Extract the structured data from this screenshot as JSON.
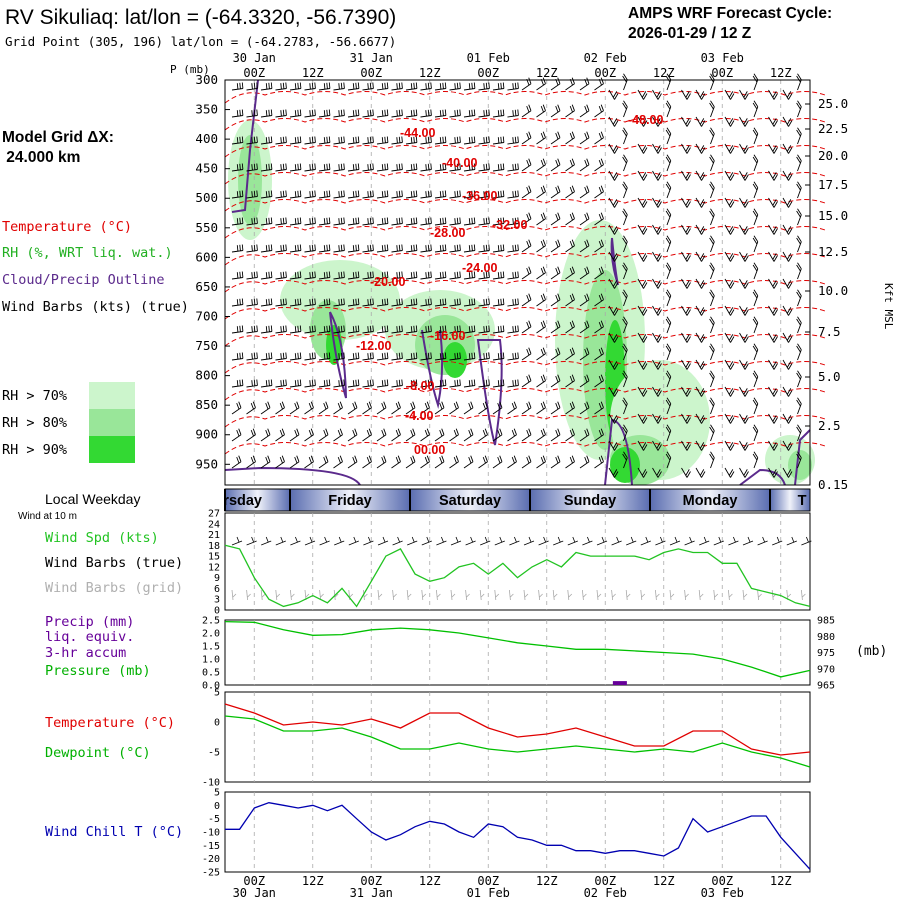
{
  "header": {
    "title": "RV Sikuliaq:  lat/lon = (-64.3320, -56.7390)",
    "subtitle": "Grid Point (305, 196) lat/lon = (-64.2783, -56.6677)",
    "cycle_label": "AMPS WRF Forecast Cycle:",
    "cycle_value": "2026-01-29 / 12  Z"
  },
  "time_axis": {
    "ticks": [
      "00Z",
      "12Z",
      "00Z",
      "12Z",
      "00Z",
      "12Z",
      "00Z",
      "12Z",
      "00Z",
      "12Z"
    ],
    "dates": [
      "30 Jan",
      "31 Jan",
      "01 Feb",
      "02 Feb",
      "03 Feb"
    ]
  },
  "sidebar": {
    "grid_label": "Model Grid ΔX:",
    "grid_value": " 24.000 km",
    "legend_temperature": "Temperature (°C)",
    "legend_rh": "RH (%, WRT liq. wat.)",
    "legend_cloud": "Cloud/Precip Outline",
    "legend_barbs": "Wind Barbs (kts) (true)",
    "rh_levels": [
      "RH > 70%",
      "RH > 80%",
      "RH > 90%"
    ],
    "rh_colors": [
      "#ccf5cc",
      "#99e699",
      "#33d933"
    ]
  },
  "sounding": {
    "pressure_label": "P (mb)",
    "pressure_ticks": [
      "300",
      "350",
      "400",
      "450",
      "500",
      "550",
      "600",
      "650",
      "700",
      "750",
      "800",
      "850",
      "900",
      "950"
    ],
    "height_label": "Kft MSL",
    "height_ticks": [
      "25.0",
      "22.5",
      "20.0",
      "17.5",
      "15.0",
      "12.5",
      "10.0",
      "7.5",
      "5.0",
      "2.5",
      "0.15"
    ],
    "temp_contours": [
      "-48.00",
      "-44.00",
      "-40.00",
      "-36.00",
      "-32.00",
      "-28.00",
      "-24.00",
      "-20.00",
      "-16.00",
      "-12.00",
      "-8.00",
      "-4.00",
      "00.00"
    ]
  },
  "weekday": {
    "label": "Local Weekday",
    "days": [
      "rsday",
      "Friday",
      "Saturday",
      "Sunday",
      "Monday",
      "T"
    ]
  },
  "panels": {
    "wind_at": "Wind at 10 m",
    "wind_spd": "Wind Spd (kts)",
    "wind_barbs_true": "Wind Barbs (true)",
    "wind_barbs_grid": "Wind Barbs (grid)",
    "precip": "Precip (mm)",
    "precip_liq": "liq. equiv.",
    "precip_accum": "3-hr accum",
    "pressure": "Pressure (mb)",
    "pressure_unit": "(mb)",
    "temperature": "Temperature (°C)",
    "dewpoint": "Dewpoint (°C)",
    "wind_chill": "Wind Chill T (°C)"
  },
  "colors": {
    "temperature": "#e00000",
    "dewpoint": "#00c000",
    "wind_speed": "#22c322",
    "precip": "#660099",
    "wind_chill": "#0000b0",
    "cloud_outline": "#5b2a8c"
  },
  "chart_data": [
    {
      "type": "line",
      "id": "wind_speed",
      "ylim": [
        0,
        27
      ],
      "yticks": [
        0,
        3,
        6,
        9,
        12,
        15,
        18,
        21,
        24,
        27
      ],
      "x_hours": [
        0,
        3,
        6,
        9,
        12,
        15,
        18,
        21,
        24,
        27,
        30,
        33,
        36,
        39,
        42,
        45,
        48,
        51,
        54,
        57,
        60,
        63,
        66,
        69,
        72,
        75,
        78,
        81,
        84,
        87,
        90,
        93,
        96,
        99,
        102,
        105,
        108,
        111,
        114,
        117,
        120
      ],
      "values": [
        18,
        17,
        9,
        3,
        1,
        2,
        4,
        2,
        6,
        1,
        8,
        15,
        17,
        10,
        8,
        9,
        12,
        13,
        10,
        13,
        9,
        12,
        14,
        12,
        16,
        15,
        15,
        15,
        15,
        14,
        16,
        17,
        16,
        16,
        13,
        13,
        6,
        5,
        4,
        2,
        1
      ]
    },
    {
      "type": "line",
      "id": "pressure",
      "ylim": [
        965,
        985
      ],
      "yticks": [
        965,
        970,
        975,
        980,
        985
      ],
      "x_hours": [
        0,
        6,
        12,
        18,
        24,
        30,
        36,
        42,
        48,
        54,
        60,
        66,
        72,
        78,
        84,
        90,
        96,
        102,
        108,
        114,
        120
      ],
      "values": [
        984.5,
        984.3,
        982.0,
        980.3,
        980.5,
        982.0,
        982.5,
        982.0,
        981.0,
        979.5,
        978.0,
        977.0,
        976.0,
        976.0,
        975.5,
        975.0,
        974.5,
        973.0,
        970.5,
        967.5,
        969.5
      ]
    },
    {
      "type": "bar",
      "id": "precip",
      "ylim": [
        0,
        2.5
      ],
      "yticks": [
        0,
        0.5,
        1.0,
        1.5,
        2.0,
        2.5
      ],
      "x_hours": [
        81
      ],
      "values": [
        0.15
      ]
    },
    {
      "type": "line",
      "id": "temperature",
      "ylim": [
        -10,
        5
      ],
      "yticks": [
        -10,
        -5,
        0,
        5
      ],
      "x_hours": [
        0,
        6,
        12,
        18,
        24,
        30,
        36,
        42,
        48,
        54,
        60,
        66,
        72,
        78,
        84,
        90,
        96,
        102,
        108,
        114,
        120
      ],
      "series": [
        {
          "values": [
            3.0,
            1.5,
            -0.5,
            0.0,
            -0.5,
            0.5,
            -1.0,
            1.5,
            1.5,
            -1.0,
            -2.5,
            -2.0,
            -1.0,
            -2.5,
            -4.0,
            -4.0,
            -1.5,
            -1.5,
            -4.5,
            -5.5,
            -5.0
          ]
        },
        {
          "values": [
            1.0,
            0.5,
            -1.5,
            -1.5,
            -1.0,
            -2.5,
            -4.5,
            -4.5,
            -3.5,
            -4.5,
            -5.0,
            -4.5,
            -4.0,
            -4.5,
            -5.0,
            -4.5,
            -5.0,
            -3.5,
            -5.0,
            -6.0,
            -7.5
          ]
        }
      ]
    },
    {
      "type": "line",
      "id": "wind_chill",
      "ylim": [
        -25,
        5
      ],
      "yticks": [
        5,
        0,
        -5,
        -10,
        -15,
        -20,
        -25
      ],
      "x_hours": [
        0,
        3,
        6,
        9,
        12,
        15,
        18,
        21,
        24,
        27,
        30,
        33,
        36,
        39,
        42,
        45,
        48,
        51,
        54,
        57,
        60,
        63,
        66,
        69,
        72,
        75,
        78,
        81,
        84,
        87,
        90,
        93,
        96,
        99,
        102,
        105,
        108,
        111,
        114,
        117,
        120
      ],
      "values": [
        -9,
        -9,
        -1,
        1,
        0,
        -1,
        0,
        -2,
        0,
        -5,
        -10,
        -13,
        -11,
        -8,
        -6,
        -7,
        -10,
        -12,
        -7,
        -8,
        -12,
        -13,
        -15,
        -15,
        -17,
        -17,
        -18,
        -17,
        -17,
        -18,
        -19,
        -16,
        -5,
        -10,
        -8,
        -6,
        -4,
        -4,
        -12,
        -18,
        -24
      ]
    }
  ]
}
